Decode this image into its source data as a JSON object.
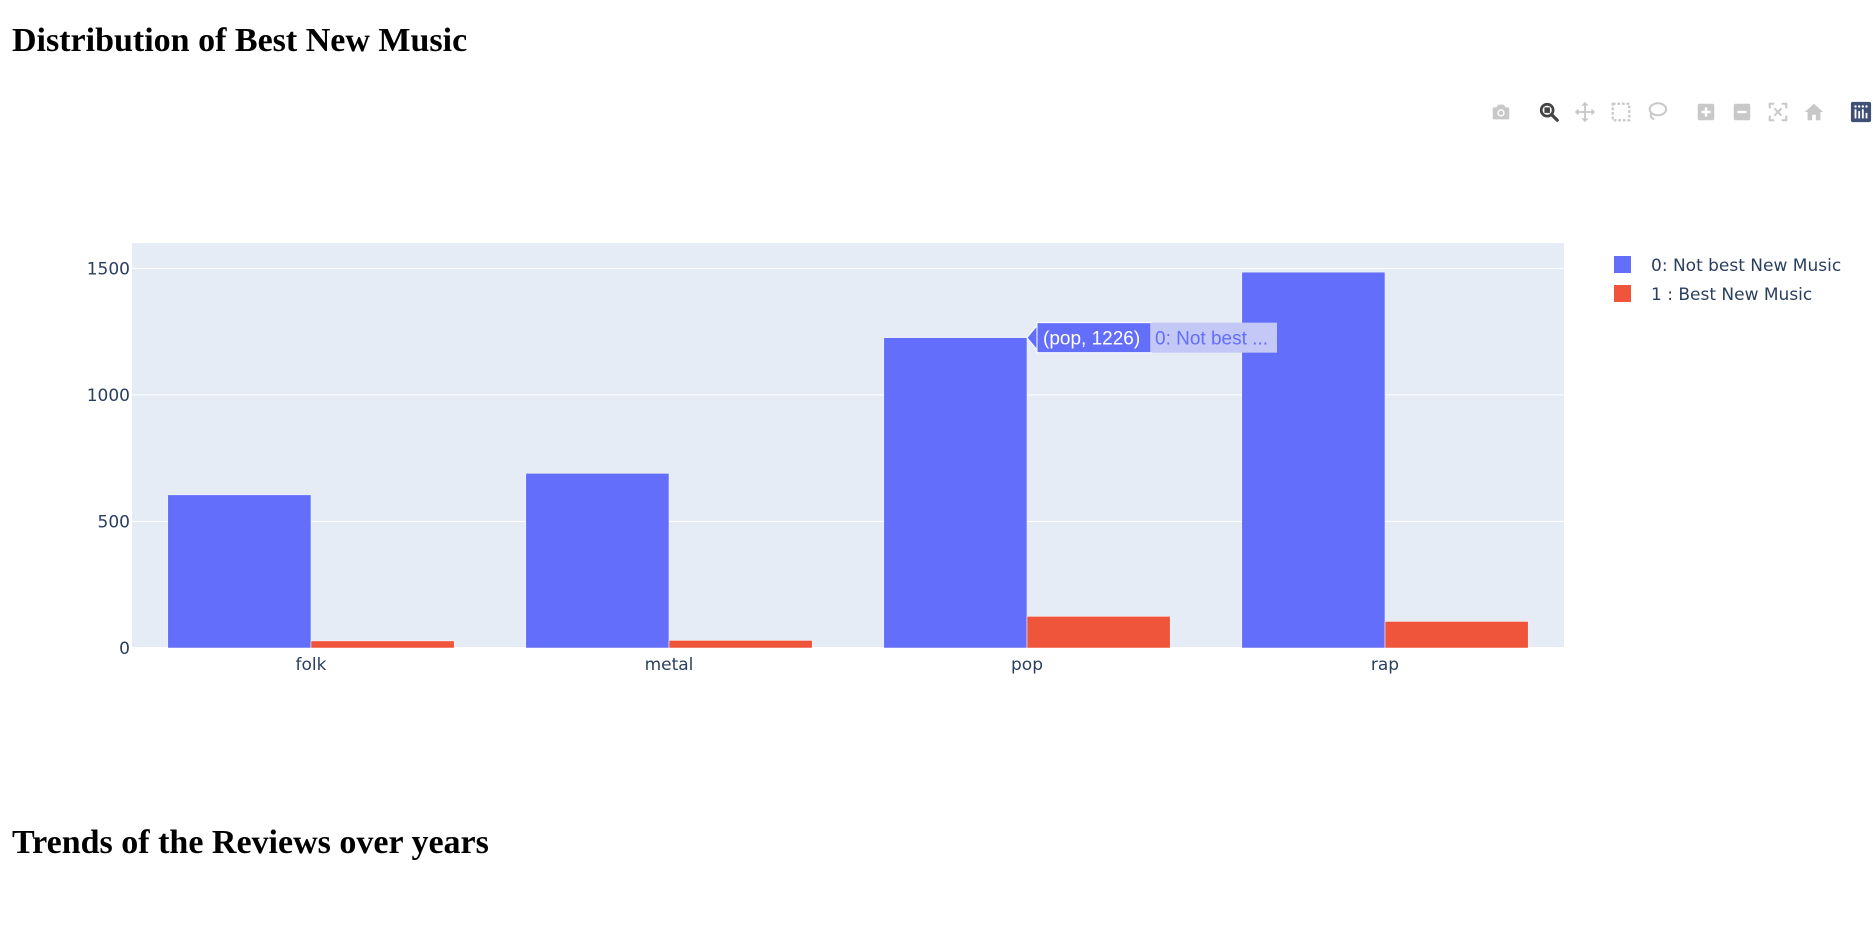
{
  "headings": {
    "section1": "Distribution of Best New Music",
    "section2": "Trends of the Reviews over years"
  },
  "modebar": {
    "buttons": [
      {
        "name": "camera-icon",
        "title": "Download plot as a png"
      },
      {
        "name": "zoom-icon",
        "title": "Zoom"
      },
      {
        "name": "pan-icon",
        "title": "Pan"
      },
      {
        "name": "box-select-icon",
        "title": "Box Select"
      },
      {
        "name": "lasso-icon",
        "title": "Lasso Select"
      },
      {
        "name": "zoom-in-icon",
        "title": "Zoom in"
      },
      {
        "name": "zoom-out-icon",
        "title": "Zoom out"
      },
      {
        "name": "autoscale-icon",
        "title": "Autoscale"
      },
      {
        "name": "home-icon",
        "title": "Reset axes"
      },
      {
        "name": "plotly-logo-icon",
        "title": "Produced with Plotly"
      }
    ]
  },
  "chart_data": {
    "type": "bar",
    "title": "",
    "xlabel": "",
    "ylabel": "",
    "categories": [
      "folk",
      "metal",
      "pop",
      "rap"
    ],
    "series": [
      {
        "name": "0: Not best New Music",
        "color": "#636efa",
        "values": [
          605,
          690,
          1226,
          1485
        ]
      },
      {
        "name": "1 : Best New Music",
        "color": "#ef553b",
        "values": [
          28,
          30,
          125,
          105
        ]
      }
    ],
    "ylim": [
      0,
      1600
    ],
    "yticks": [
      0,
      500,
      1000,
      1500
    ],
    "grid": true,
    "legend": "top-right",
    "hover": {
      "category": "pop",
      "series_index": 0,
      "value_label": "(pop, 1226)",
      "name_label": "0: Not best ..."
    }
  }
}
